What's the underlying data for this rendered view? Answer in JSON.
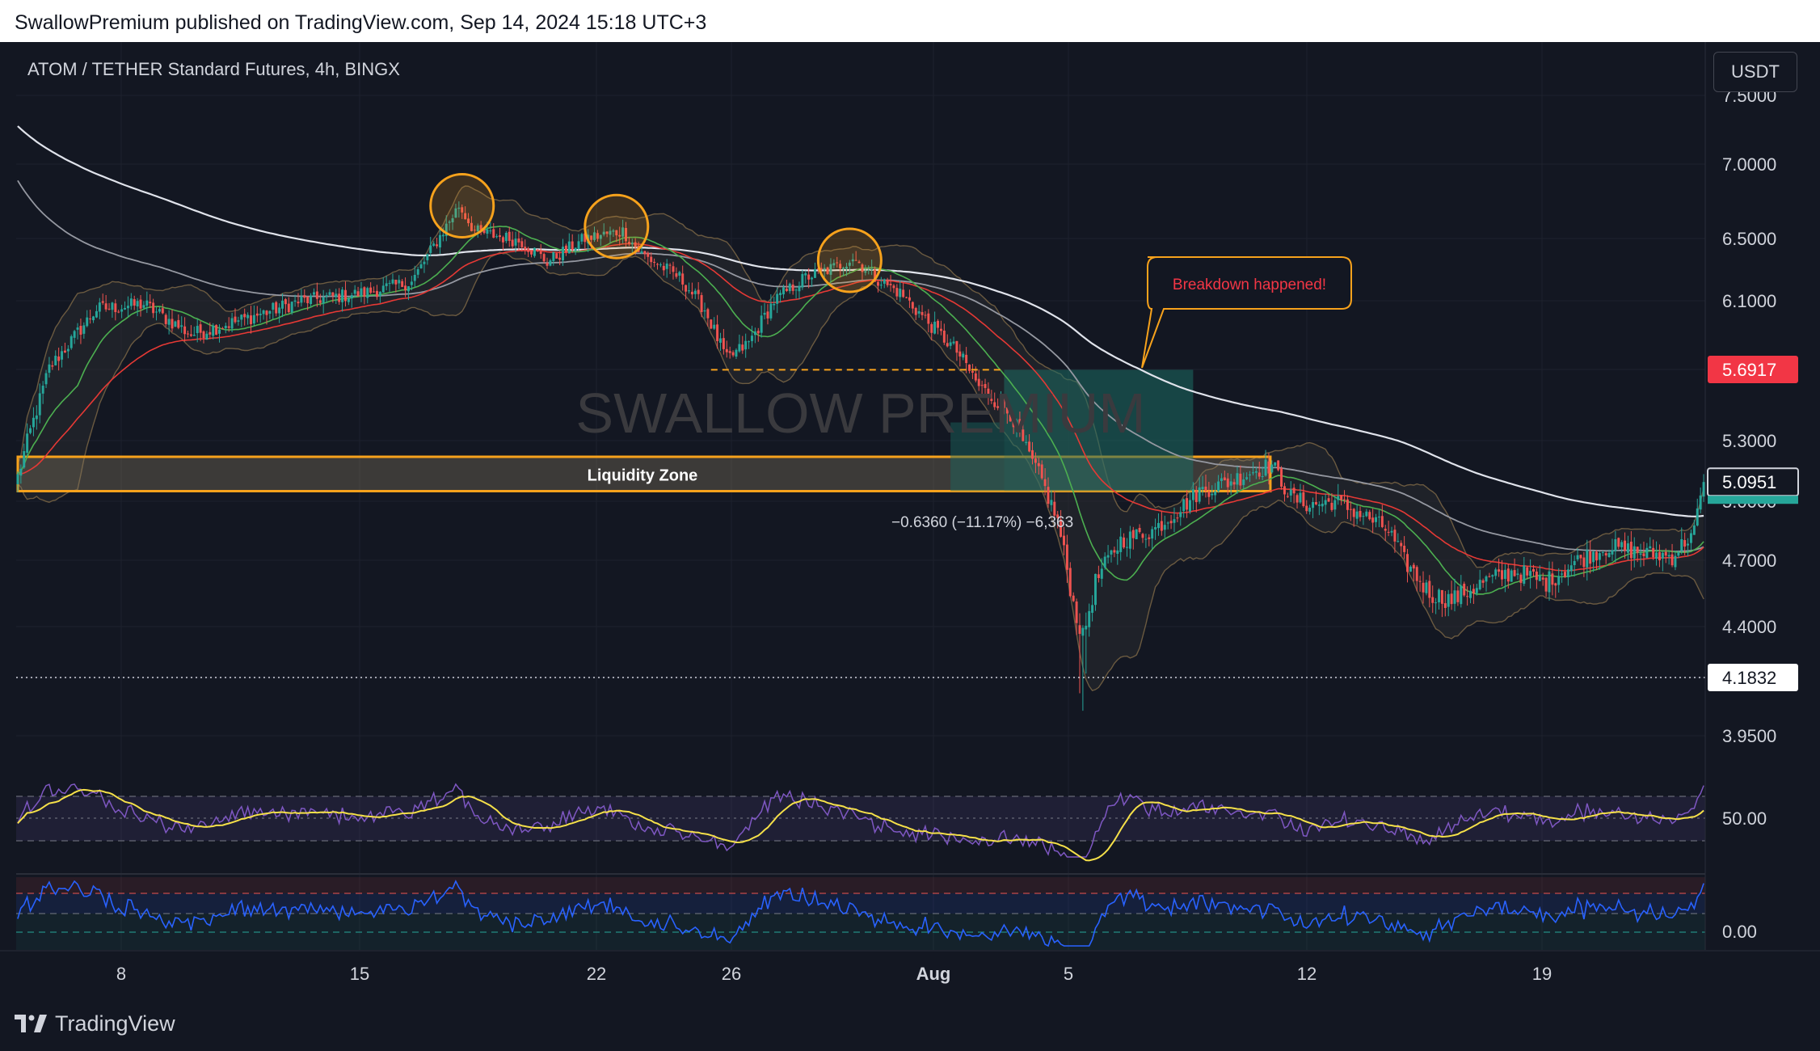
{
  "header": {
    "published": "SwallowPremium published on TradingView.com, Sep 14, 2024 15:18 UTC+3"
  },
  "footer": {
    "brand": "TradingView"
  },
  "chart": {
    "symbol": "ATOM / TETHER Standard Futures, 4h, BINGX",
    "currency_button": "USDT",
    "watermark": "SWALLOW PREMIUM",
    "zone_label": "Liquidity Zone",
    "callout": "Breakdown happened!",
    "measure_label": "−0.6360 (−11.17%) −6,363",
    "price_badges": [
      {
        "value": "5.6917",
        "style": "red"
      },
      {
        "value": "5.0951",
        "style": "dark"
      },
      {
        "value": "4.1832",
        "style": "white"
      }
    ],
    "colors": {
      "background": "#131722",
      "up": "#26a69a",
      "down": "#ef5350",
      "highlight": "#f7a21c",
      "ema200": "#e0e3eb",
      "ema100": "#9598a1",
      "ema50": "#e53935",
      "ema20": "#4caf50",
      "rsi": "#7e57c2",
      "rsi_ma": "#f5e049",
      "osc": "#2962ff"
    }
  },
  "chart_data": {
    "type": "candlestick",
    "price_axis_ticks": [
      "7.5000",
      "7.0000",
      "6.5000",
      "6.1000",
      "5.6917",
      "5.3000",
      "5.0000",
      "4.7000",
      "4.4000",
      "4.1832",
      "3.9500"
    ],
    "time_axis_ticks": [
      "8",
      "15",
      "22",
      "26",
      "Aug",
      "5",
      "12",
      "19"
    ],
    "levels": {
      "liquidity_zone": [
        5.05,
        5.22
      ],
      "breakdown_level": 5.69,
      "current_price": 5.0951,
      "low_marker": 4.1832
    },
    "path_points": [
      [
        0,
        5.12
      ],
      [
        10,
        5.7
      ],
      [
        25,
        6.05
      ],
      [
        40,
        6.08
      ],
      [
        55,
        5.9
      ],
      [
        70,
        5.98
      ],
      [
        90,
        6.1
      ],
      [
        110,
        6.15
      ],
      [
        125,
        6.22
      ],
      [
        135,
        6.55
      ],
      [
        140,
        6.72
      ],
      [
        145,
        6.55
      ],
      [
        160,
        6.48
      ],
      [
        168,
        6.35
      ],
      [
        180,
        6.5
      ],
      [
        192,
        6.55
      ],
      [
        198,
        6.4
      ],
      [
        210,
        6.25
      ],
      [
        218,
        6.05
      ],
      [
        225,
        5.75
      ],
      [
        232,
        5.85
      ],
      [
        240,
        6.1
      ],
      [
        250,
        6.25
      ],
      [
        260,
        6.32
      ],
      [
        265,
        6.38
      ],
      [
        272,
        6.25
      ],
      [
        280,
        6.15
      ],
      [
        290,
        5.95
      ],
      [
        298,
        5.8
      ],
      [
        305,
        5.6
      ],
      [
        315,
        5.45
      ],
      [
        320,
        5.25
      ],
      [
        325,
        5.1
      ],
      [
        330,
        4.9
      ],
      [
        335,
        4.5
      ],
      [
        338,
        4.35
      ],
      [
        342,
        4.6
      ],
      [
        350,
        4.8
      ],
      [
        360,
        4.85
      ],
      [
        368,
        4.95
      ],
      [
        375,
        5.05
      ],
      [
        385,
        5.1
      ],
      [
        392,
        5.15
      ],
      [
        398,
        5.18
      ],
      [
        404,
        5.02
      ],
      [
        410,
        4.98
      ],
      [
        418,
        5.0
      ],
      [
        428,
        4.92
      ],
      [
        435,
        4.85
      ],
      [
        440,
        4.7
      ],
      [
        448,
        4.55
      ],
      [
        455,
        4.52
      ],
      [
        465,
        4.6
      ],
      [
        475,
        4.65
      ],
      [
        485,
        4.6
      ],
      [
        495,
        4.7
      ],
      [
        505,
        4.77
      ],
      [
        515,
        4.74
      ],
      [
        525,
        4.72
      ],
      [
        532,
        4.85
      ],
      [
        535,
        5.1
      ]
    ],
    "indicator_1": {
      "name": "",
      "level": "50.00"
    },
    "indicator_2": {
      "name": "",
      "level": "0.00"
    }
  }
}
